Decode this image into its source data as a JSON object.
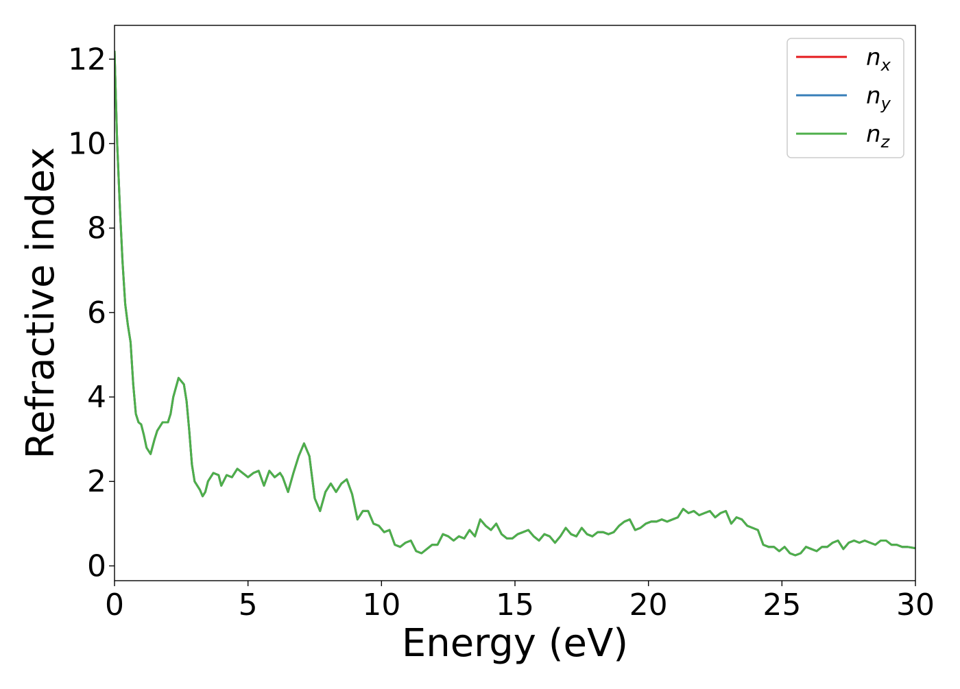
{
  "chart_data": {
    "type": "line",
    "title": "",
    "xlabel": "Energy (eV)",
    "ylabel": "Refractive index",
    "xlim": [
      0,
      30
    ],
    "ylim": [
      -0.35,
      12.8
    ],
    "xticks": [
      0,
      5,
      10,
      15,
      20,
      25,
      30
    ],
    "yticks": [
      0,
      2,
      4,
      6,
      8,
      10,
      12
    ],
    "grid": false,
    "legend_position": "top-right",
    "x": [
      0,
      0.1,
      0.2,
      0.3,
      0.4,
      0.5,
      0.6,
      0.7,
      0.8,
      0.9,
      1.0,
      1.1,
      1.2,
      1.35,
      1.5,
      1.6,
      1.8,
      2.0,
      2.1,
      2.2,
      2.4,
      2.6,
      2.7,
      2.8,
      2.9,
      3.0,
      3.2,
      3.3,
      3.4,
      3.5,
      3.7,
      3.9,
      4.0,
      4.2,
      4.4,
      4.6,
      4.8,
      5.0,
      5.2,
      5.4,
      5.6,
      5.8,
      6.0,
      6.2,
      6.3,
      6.5,
      6.7,
      6.9,
      7.1,
      7.3,
      7.5,
      7.7,
      7.9,
      8.1,
      8.3,
      8.5,
      8.7,
      8.9,
      9.1,
      9.3,
      9.5,
      9.7,
      9.9,
      10.1,
      10.3,
      10.5,
      10.7,
      10.9,
      11.1,
      11.3,
      11.5,
      11.7,
      11.9,
      12.1,
      12.3,
      12.5,
      12.7,
      12.9,
      13.1,
      13.3,
      13.5,
      13.7,
      13.9,
      14.1,
      14.3,
      14.5,
      14.7,
      14.9,
      15.1,
      15.3,
      15.5,
      15.7,
      15.9,
      16.1,
      16.3,
      16.5,
      16.7,
      16.9,
      17.1,
      17.3,
      17.5,
      17.7,
      17.9,
      18.1,
      18.3,
      18.5,
      18.7,
      18.9,
      19.1,
      19.3,
      19.5,
      19.7,
      19.9,
      20.1,
      20.3,
      20.5,
      20.7,
      20.9,
      21.1,
      21.3,
      21.5,
      21.7,
      21.9,
      22.1,
      22.3,
      22.5,
      22.7,
      22.9,
      23.1,
      23.3,
      23.5,
      23.7,
      23.9,
      24.1,
      24.3,
      24.5,
      24.7,
      24.9,
      25.1,
      25.3,
      25.5,
      25.7,
      25.9,
      26.1,
      26.3,
      26.5,
      26.7,
      26.9,
      27.1,
      27.3,
      27.5,
      27.7,
      27.9,
      28.1,
      28.3,
      28.5,
      28.7,
      28.9,
      29.1,
      29.3,
      29.5,
      29.7,
      30.0
    ],
    "series": [
      {
        "name": "n_x",
        "color": "#e41a1c",
        "values": [
          12.2,
          10.0,
          8.5,
          7.2,
          6.2,
          5.7,
          5.3,
          4.3,
          3.6,
          3.4,
          3.35,
          3.1,
          2.8,
          2.65,
          3.0,
          3.2,
          3.4,
          3.4,
          3.6,
          4.0,
          4.45,
          4.3,
          3.9,
          3.2,
          2.4,
          2.0,
          1.8,
          1.65,
          1.75,
          2.0,
          2.2,
          2.15,
          1.9,
          2.15,
          2.1,
          2.3,
          2.2,
          2.1,
          2.2,
          2.25,
          1.9,
          2.25,
          2.1,
          2.2,
          2.1,
          1.75,
          2.2,
          2.6,
          2.9,
          2.6,
          1.6,
          1.3,
          1.75,
          1.95,
          1.75,
          1.95,
          2.05,
          1.7,
          1.1,
          1.3,
          1.3,
          1.0,
          0.95,
          0.8,
          0.85,
          0.5,
          0.45,
          0.55,
          0.6,
          0.35,
          0.3,
          0.4,
          0.5,
          0.5,
          0.75,
          0.7,
          0.6,
          0.7,
          0.65,
          0.85,
          0.7,
          1.1,
          0.95,
          0.85,
          1.0,
          0.75,
          0.65,
          0.65,
          0.75,
          0.8,
          0.85,
          0.7,
          0.6,
          0.75,
          0.7,
          0.55,
          0.7,
          0.9,
          0.75,
          0.7,
          0.9,
          0.75,
          0.7,
          0.8,
          0.8,
          0.75,
          0.8,
          0.95,
          1.05,
          1.1,
          0.85,
          0.9,
          1.0,
          1.05,
          1.05,
          1.1,
          1.05,
          1.1,
          1.15,
          1.35,
          1.25,
          1.3,
          1.2,
          1.25,
          1.3,
          1.15,
          1.25,
          1.3,
          1.0,
          1.15,
          1.1,
          0.95,
          0.9,
          0.85,
          0.5,
          0.45,
          0.45,
          0.35,
          0.45,
          0.3,
          0.25,
          0.3,
          0.45,
          0.4,
          0.35,
          0.45,
          0.45,
          0.55,
          0.6,
          0.4,
          0.55,
          0.6,
          0.55,
          0.6,
          0.55,
          0.5,
          0.6,
          0.6,
          0.5,
          0.5,
          0.45,
          0.45,
          0.42
        ]
      },
      {
        "name": "n_y",
        "color": "#377eb8",
        "values": [
          12.2,
          10.0,
          8.5,
          7.2,
          6.2,
          5.7,
          5.3,
          4.3,
          3.6,
          3.4,
          3.35,
          3.1,
          2.8,
          2.65,
          3.0,
          3.2,
          3.4,
          3.4,
          3.6,
          4.0,
          4.45,
          4.3,
          3.9,
          3.2,
          2.4,
          2.0,
          1.8,
          1.65,
          1.75,
          2.0,
          2.2,
          2.15,
          1.9,
          2.15,
          2.1,
          2.3,
          2.2,
          2.1,
          2.2,
          2.25,
          1.9,
          2.25,
          2.1,
          2.2,
          2.1,
          1.75,
          2.2,
          2.6,
          2.9,
          2.6,
          1.6,
          1.3,
          1.75,
          1.95,
          1.75,
          1.95,
          2.05,
          1.7,
          1.1,
          1.3,
          1.3,
          1.0,
          0.95,
          0.8,
          0.85,
          0.5,
          0.45,
          0.55,
          0.6,
          0.35,
          0.3,
          0.4,
          0.5,
          0.5,
          0.75,
          0.7,
          0.6,
          0.7,
          0.65,
          0.85,
          0.7,
          1.1,
          0.95,
          0.85,
          1.0,
          0.75,
          0.65,
          0.65,
          0.75,
          0.8,
          0.85,
          0.7,
          0.6,
          0.75,
          0.7,
          0.55,
          0.7,
          0.9,
          0.75,
          0.7,
          0.9,
          0.75,
          0.7,
          0.8,
          0.8,
          0.75,
          0.8,
          0.95,
          1.05,
          1.1,
          0.85,
          0.9,
          1.0,
          1.05,
          1.05,
          1.1,
          1.05,
          1.1,
          1.15,
          1.35,
          1.25,
          1.3,
          1.2,
          1.25,
          1.3,
          1.15,
          1.25,
          1.3,
          1.0,
          1.15,
          1.1,
          0.95,
          0.9,
          0.85,
          0.5,
          0.45,
          0.45,
          0.35,
          0.45,
          0.3,
          0.25,
          0.3,
          0.45,
          0.4,
          0.35,
          0.45,
          0.45,
          0.55,
          0.6,
          0.4,
          0.55,
          0.6,
          0.55,
          0.6,
          0.55,
          0.5,
          0.6,
          0.6,
          0.5,
          0.5,
          0.45,
          0.45,
          0.42
        ]
      },
      {
        "name": "n_z",
        "color": "#4daf4a",
        "values": [
          12.2,
          10.0,
          8.5,
          7.2,
          6.2,
          5.7,
          5.3,
          4.3,
          3.6,
          3.4,
          3.35,
          3.1,
          2.8,
          2.65,
          3.0,
          3.2,
          3.4,
          3.4,
          3.6,
          4.0,
          4.45,
          4.3,
          3.9,
          3.2,
          2.4,
          2.0,
          1.8,
          1.65,
          1.75,
          2.0,
          2.2,
          2.15,
          1.9,
          2.15,
          2.1,
          2.3,
          2.2,
          2.1,
          2.2,
          2.25,
          1.9,
          2.25,
          2.1,
          2.2,
          2.1,
          1.75,
          2.2,
          2.6,
          2.9,
          2.6,
          1.6,
          1.3,
          1.75,
          1.95,
          1.75,
          1.95,
          2.05,
          1.7,
          1.1,
          1.3,
          1.3,
          1.0,
          0.95,
          0.8,
          0.85,
          0.5,
          0.45,
          0.55,
          0.6,
          0.35,
          0.3,
          0.4,
          0.5,
          0.5,
          0.75,
          0.7,
          0.6,
          0.7,
          0.65,
          0.85,
          0.7,
          1.1,
          0.95,
          0.85,
          1.0,
          0.75,
          0.65,
          0.65,
          0.75,
          0.8,
          0.85,
          0.7,
          0.6,
          0.75,
          0.7,
          0.55,
          0.7,
          0.9,
          0.75,
          0.7,
          0.9,
          0.75,
          0.7,
          0.8,
          0.8,
          0.75,
          0.8,
          0.95,
          1.05,
          1.1,
          0.85,
          0.9,
          1.0,
          1.05,
          1.05,
          1.1,
          1.05,
          1.1,
          1.15,
          1.35,
          1.25,
          1.3,
          1.2,
          1.25,
          1.3,
          1.15,
          1.25,
          1.3,
          1.0,
          1.15,
          1.1,
          0.95,
          0.9,
          0.85,
          0.5,
          0.45,
          0.45,
          0.35,
          0.45,
          0.3,
          0.25,
          0.3,
          0.45,
          0.4,
          0.35,
          0.45,
          0.45,
          0.55,
          0.6,
          0.4,
          0.55,
          0.6,
          0.55,
          0.6,
          0.55,
          0.5,
          0.6,
          0.6,
          0.5,
          0.5,
          0.45,
          0.45,
          0.42
        ]
      }
    ],
    "legend": [
      {
        "base": "n",
        "sub": "x",
        "color": "#e41a1c"
      },
      {
        "base": "n",
        "sub": "y",
        "color": "#377eb8"
      },
      {
        "base": "n",
        "sub": "z",
        "color": "#4daf4a"
      }
    ]
  }
}
